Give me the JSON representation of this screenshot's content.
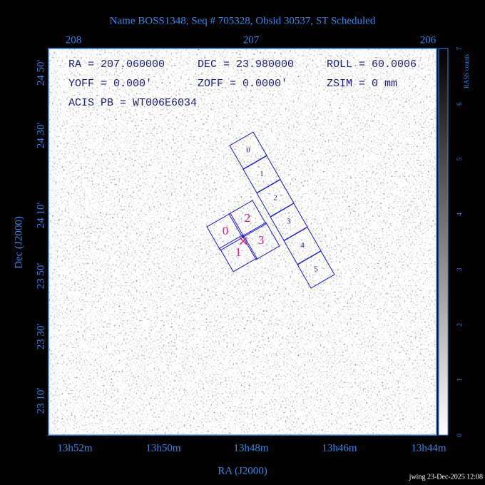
{
  "title": "Name BOSS1348, Seq # 705328, Obsid 30537, ST Scheduled",
  "top_axis_labels": [
    "208",
    "207",
    "206"
  ],
  "bottom_axis_labels": [
    "13h52m",
    "13h50m",
    "13h48m",
    "13h46m",
    "13h44m"
  ],
  "left_axis_labels": [
    "24 50'",
    "24 30'",
    "24 10'",
    "23 50'",
    "23 30'",
    "23 10'"
  ],
  "x_axis_title": "RA (J2000)",
  "y_axis_title": "Dec (J2000)",
  "colorbar": {
    "title": "RASS counts",
    "ticks": [
      "0",
      "1",
      "2",
      "3",
      "4",
      "5",
      "6",
      "7"
    ]
  },
  "info": [
    [
      "RA = 207.060000",
      "DEC = 23.980000",
      "ROLL = 60.0006"
    ],
    [
      "YOFF =   0.000'",
      "ZOFF =  0.0000'",
      "ZSIM = 0 mm"
    ],
    [
      "ACIS PB = WT006E6034"
    ]
  ],
  "acis_s_chips": [
    "0",
    "1",
    "2",
    "3",
    "4",
    "5"
  ],
  "acis_i_chips": [
    "0",
    "1",
    "2",
    "3"
  ],
  "footer": "jwing 23-Dec-2025 12:08"
}
